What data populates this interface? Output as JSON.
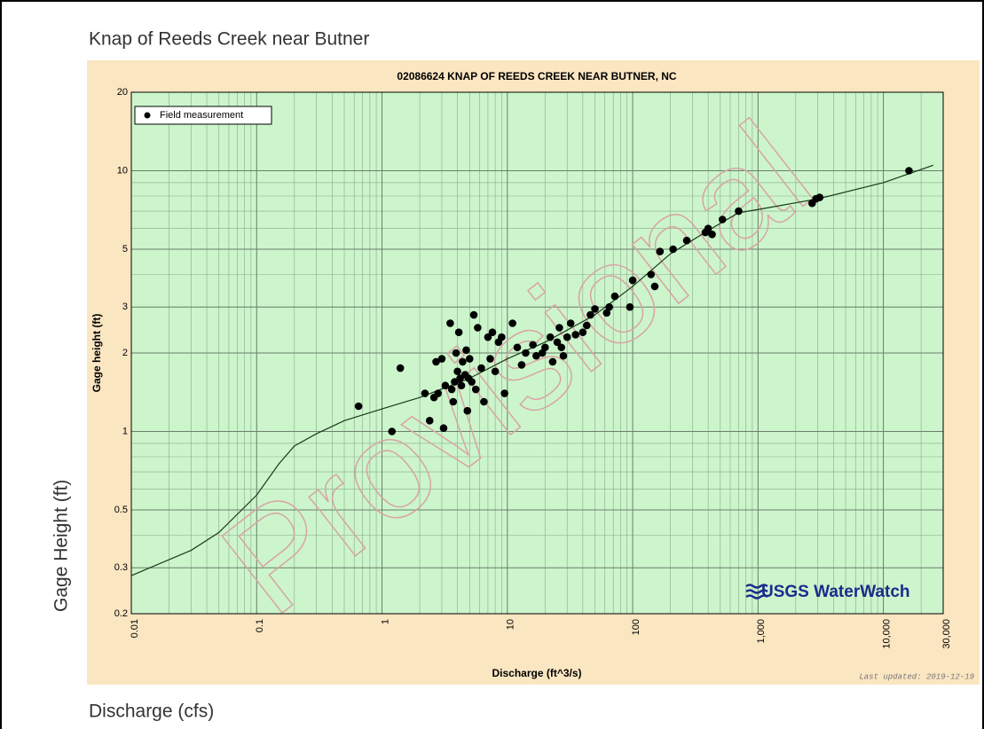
{
  "page": {
    "title": "Knap of Reeds Creek near Butner",
    "y_label": "Gage Height (ft)",
    "x_label": "Discharge (cfs)"
  },
  "chart_data": {
    "type": "scatter",
    "title": "02086624 KNAP OF REEDS CREEK NEAR BUTNER, NC",
    "x_label": "Discharge (ft^3/s)",
    "y_label": "Gage height (ft)",
    "updated": "Last updated: 2019-12-19",
    "watermark": "Provisional",
    "logo": "USGS WaterWatch",
    "xscale": "log",
    "yscale": "log",
    "grid": true,
    "legend": "upper left",
    "xlim": [
      0.01,
      30000
    ],
    "ylim": [
      0.2,
      20
    ],
    "xticks": [
      0.01,
      0.1,
      1,
      10,
      100,
      {
        "value": 1000,
        "label": "1,000"
      },
      {
        "value": 10000,
        "label": "10,000"
      },
      {
        "value": 30000,
        "label": "30,000"
      }
    ],
    "yticks": [
      0.2,
      0.3,
      0.5,
      1,
      2,
      3,
      5,
      10,
      20
    ],
    "series": [
      {
        "name": "Field measurement",
        "color": "#000000",
        "x": [
          0.65,
          1.2,
          1.4,
          2.2,
          2.4,
          2.6,
          2.7,
          2.8,
          3,
          3.1,
          3.2,
          3.5,
          3.6,
          3.7,
          3.8,
          3.9,
          4,
          4.1,
          4.2,
          4.3,
          4.4,
          4.6,
          4.7,
          4.8,
          4.9,
          5,
          5.2,
          5.4,
          5.6,
          5.8,
          6.2,
          6.5,
          7,
          7.3,
          7.6,
          8,
          8.5,
          9,
          9.5,
          11,
          12,
          13,
          14,
          16,
          17,
          19,
          20,
          22,
          23,
          25,
          26,
          27,
          28,
          30,
          32,
          35,
          40,
          43,
          46,
          50,
          62,
          65,
          72,
          95,
          100,
          140,
          150,
          165,
          210,
          270,
          380,
          400,
          430,
          520,
          700,
          2700,
          2900,
          3100,
          16000
        ],
        "values": [
          1.25,
          1.0,
          1.75,
          1.4,
          1.1,
          1.35,
          1.85,
          1.4,
          1.9,
          1.03,
          1.5,
          2.6,
          1.45,
          1.3,
          1.55,
          2.0,
          1.7,
          2.4,
          1.6,
          1.5,
          1.85,
          1.65,
          2.05,
          1.2,
          1.6,
          1.9,
          1.55,
          2.8,
          1.45,
          2.5,
          1.75,
          1.3,
          2.3,
          1.9,
          2.4,
          1.7,
          2.2,
          2.3,
          1.4,
          2.6,
          2.1,
          1.8,
          2.0,
          2.15,
          1.95,
          2.0,
          2.1,
          2.3,
          1.85,
          2.2,
          2.5,
          2.1,
          1.95,
          2.3,
          2.6,
          2.35,
          2.4,
          2.55,
          2.8,
          2.95,
          2.85,
          3.0,
          3.3,
          3.0,
          3.8,
          4.0,
          3.6,
          4.9,
          5.0,
          5.4,
          5.8,
          6.0,
          5.7,
          6.5,
          7.0,
          7.5,
          7.8,
          7.9,
          10
        ]
      }
    ],
    "curve": {
      "color": "#1a3a1a",
      "x": [
        0.01,
        0.03,
        0.05,
        0.1,
        0.15,
        0.2,
        0.3,
        0.5,
        1,
        2,
        5,
        10,
        20,
        50,
        100,
        200,
        400,
        700,
        1000,
        3000,
        10000,
        25000
      ],
      "values": [
        0.28,
        0.35,
        0.41,
        0.57,
        0.75,
        0.88,
        0.98,
        1.1,
        1.22,
        1.35,
        1.6,
        1.9,
        2.2,
        2.8,
        3.6,
        4.8,
        5.9,
        6.9,
        7.1,
        7.8,
        9,
        10.5
      ]
    }
  }
}
